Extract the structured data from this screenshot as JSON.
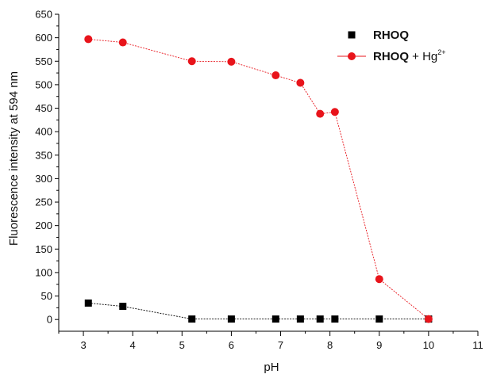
{
  "chart_data": {
    "type": "line",
    "title": "",
    "xlabel": "pH",
    "ylabel": "Fluorescence intensity at 594 nm",
    "xlim": [
      2.5,
      11
    ],
    "ylim": [
      -25,
      650
    ],
    "xticks": [
      3,
      4,
      5,
      6,
      7,
      8,
      9,
      10,
      11
    ],
    "yticks": [
      0,
      50,
      100,
      150,
      200,
      250,
      300,
      350,
      400,
      450,
      500,
      550,
      600,
      650
    ],
    "grid": false,
    "legend_position": "top-right",
    "series": [
      {
        "name_main": "RHOQ",
        "name_suffix": "",
        "name_sup": "",
        "color": "#000000",
        "marker": "square",
        "x": [
          3.1,
          3.8,
          5.2,
          6.0,
          6.9,
          7.4,
          7.8,
          8.1,
          9.0,
          10.0
        ],
        "y": [
          35,
          28,
          1,
          1,
          1,
          1,
          1,
          1,
          1,
          1
        ]
      },
      {
        "name_main": "RHOQ",
        "name_suffix": " + Hg",
        "name_sup": "2+",
        "color": "#e8141b",
        "marker": "circle",
        "x": [
          3.1,
          3.8,
          5.2,
          6.0,
          6.9,
          7.4,
          7.8,
          8.1,
          9.0,
          10.0
        ],
        "y": [
          597,
          590,
          550,
          549,
          520,
          504,
          438,
          442,
          86,
          1
        ]
      }
    ]
  }
}
